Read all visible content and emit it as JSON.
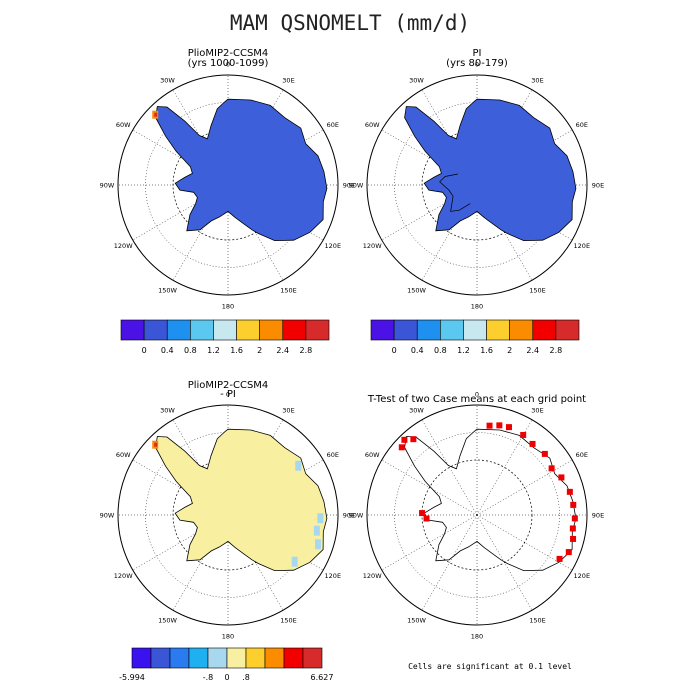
{
  "title": "MAM QSNOMELT (mm/d)",
  "lon_labels": [
    "0",
    "30E",
    "60E",
    "90E",
    "120E",
    "150E",
    "180",
    "150W",
    "120W",
    "90W",
    "60W",
    "30W"
  ],
  "panels": [
    {
      "id": "tl",
      "title": "PlioMIP2-CCSM4",
      "subtitle": "(yrs 1000-1099)"
    },
    {
      "id": "tr",
      "title": "PI",
      "subtitle": "(yrs 80-179)"
    },
    {
      "id": "bl",
      "title": "PlioMIP2-CCSM4",
      "subtitle": "- PI"
    },
    {
      "id": "br",
      "title": "T-Test of two Case means at each grid point",
      "subtitle": ""
    }
  ],
  "colorbar_top": {
    "colors": [
      "#4b12e6",
      "#3a55d6",
      "#1e90f0",
      "#5bc8f0",
      "#c8e8f0",
      "#fccf2e",
      "#fb8c00",
      "#f20000",
      "#d72a2a"
    ],
    "labels": [
      "0",
      "0.4",
      "0.8",
      "1.2",
      "1.6",
      "2",
      "2.4",
      "2.8"
    ]
  },
  "colorbar_diff": {
    "colors": [
      "#3a12f0",
      "#3a55d6",
      "#2a7af0",
      "#1eb0f0",
      "#a8d8f0",
      "#f8f0a0",
      "#fccf2e",
      "#fb8c00",
      "#f20000",
      "#d72a2a"
    ],
    "labels": [
      "-5.994",
      "-.8",
      "0",
      ".8",
      "6.627"
    ]
  },
  "footnote": "Cells are significant at 0.1 level",
  "colors": {
    "ice": "#3d5fd9",
    "diff_fill": "#f8f0a0",
    "diff_blue": "#a8d8f0",
    "sig": "#ee0000",
    "hot": "#d72a2a",
    "warm": "#fb8c00"
  }
}
